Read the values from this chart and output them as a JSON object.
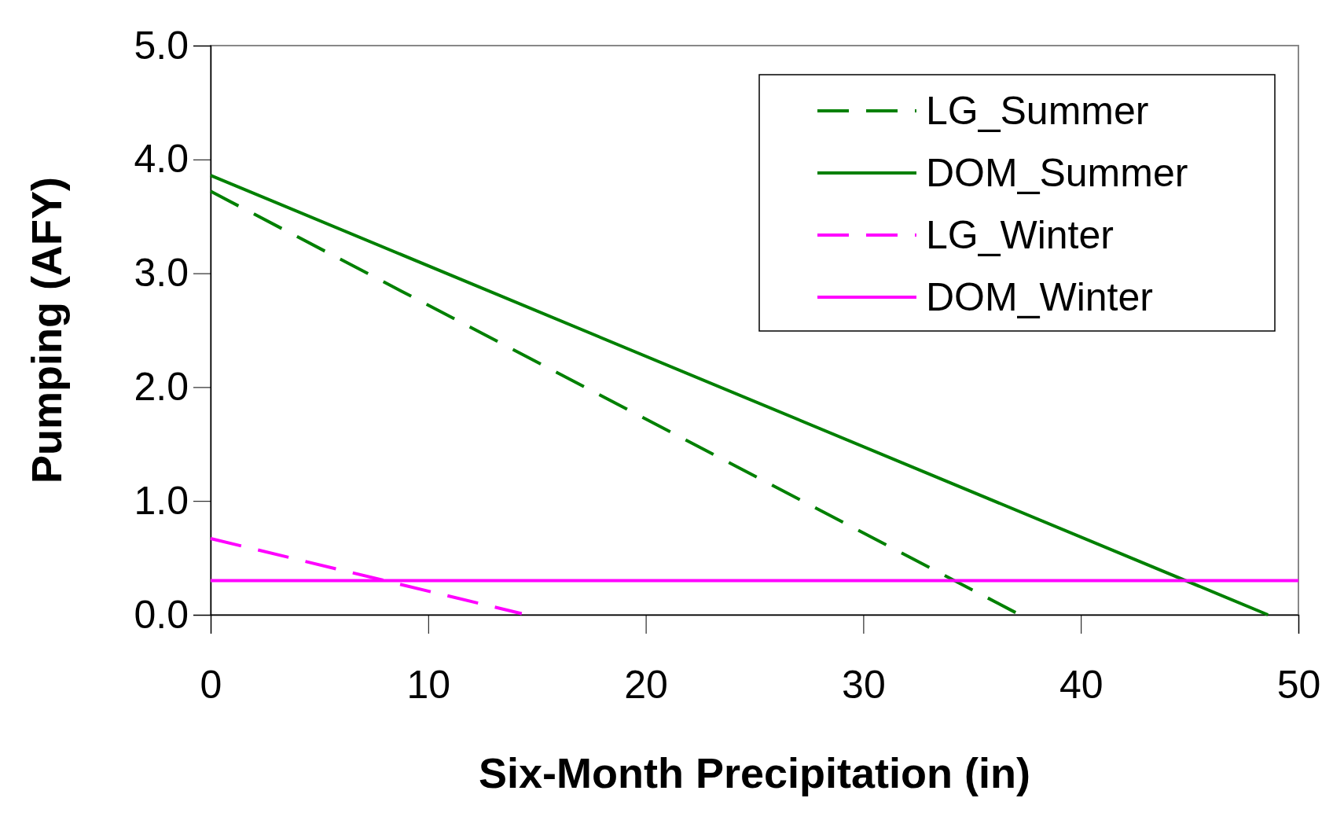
{
  "chart_data": {
    "type": "line",
    "xlabel": "Six-Month Precipitation (in)",
    "ylabel": "Pumping (AFY)",
    "xlim": [
      0,
      50
    ],
    "xticks": [
      0,
      10,
      20,
      30,
      40,
      50
    ],
    "ylim": [
      0,
      5
    ],
    "yticks": [
      {
        "value": 0,
        "label": "0.0"
      },
      {
        "value": 1,
        "label": "1.0"
      },
      {
        "value": 2,
        "label": "2.0"
      },
      {
        "value": 3,
        "label": "3.0"
      },
      {
        "value": 4,
        "label": "4.0"
      },
      {
        "value": 5,
        "label": "5.0"
      }
    ],
    "grid": false,
    "legend": "top right",
    "marker": "none",
    "series": [
      {
        "name": "LG_Summer",
        "color": "#008000",
        "line_style": "dashed",
        "x": [
          0,
          37
        ],
        "values": [
          3.72,
          0.02
        ]
      },
      {
        "name": "DOM_Summer",
        "color": "#008000",
        "line_style": "solid",
        "x": [
          0,
          48.6
        ],
        "values": [
          3.86,
          0
        ]
      },
      {
        "name": "LG_Winter",
        "color": "#ff00ff",
        "line_style": "dashed",
        "x": [
          0,
          14.3
        ],
        "values": [
          0.67,
          0.01
        ]
      },
      {
        "name": "DOM_Winter",
        "color": "#ff00ff",
        "line_style": "solid",
        "x": [
          0,
          50
        ],
        "values": [
          0.3,
          0.3
        ]
      }
    ]
  }
}
